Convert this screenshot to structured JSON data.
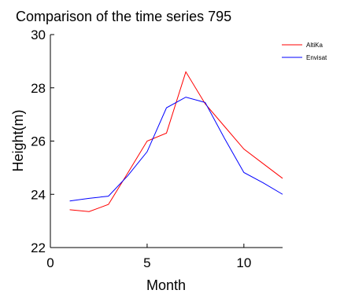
{
  "chart_data": {
    "type": "line",
    "title": "Comparison of the time series 795",
    "xlabel": "Month",
    "ylabel": "Height(m)",
    "xlim": [
      0,
      12
    ],
    "ylim": [
      22,
      30
    ],
    "xticks": [
      0,
      5,
      10
    ],
    "yticks": [
      22,
      24,
      26,
      28,
      30
    ],
    "grid": false,
    "legend_position": "top-right",
    "series": [
      {
        "name": "AltiKa",
        "color": "#ff0000",
        "x": [
          1,
          2,
          3,
          4,
          5,
          6,
          7,
          8,
          9,
          10,
          11,
          12
        ],
        "values": [
          23.42,
          23.35,
          23.62,
          24.8,
          26.0,
          26.3,
          28.6,
          27.4,
          26.55,
          25.7,
          25.15,
          24.6
        ]
      },
      {
        "name": "Envisat",
        "color": "#0000ff",
        "x": [
          1,
          2,
          3,
          4,
          5,
          6,
          7,
          8,
          9,
          10,
          11,
          12
        ],
        "values": [
          23.75,
          23.85,
          23.93,
          24.7,
          25.6,
          27.25,
          27.65,
          27.45,
          26.1,
          24.82,
          24.43,
          24.0
        ]
      }
    ]
  }
}
